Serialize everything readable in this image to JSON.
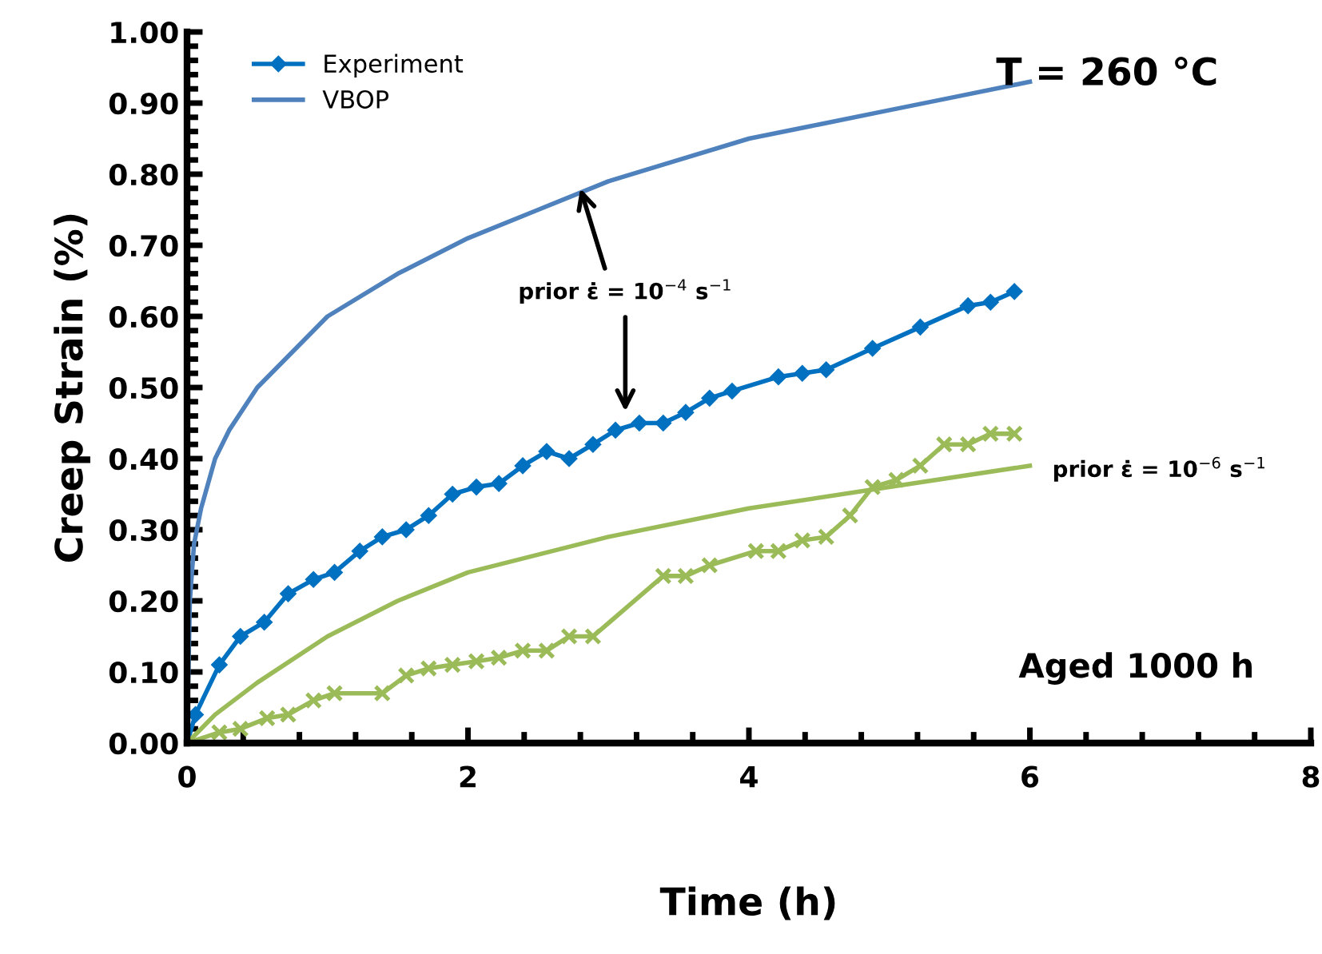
{
  "chart_data": {
    "type": "line",
    "xlabel": "Time (h)",
    "ylabel": "Creep Strain (%)",
    "xlim": [
      0,
      8
    ],
    "xticks": [
      0,
      2,
      4,
      6,
      8
    ],
    "ylim": [
      0,
      1.0
    ],
    "yticks": [
      {
        "value": 0,
        "label": "0.00"
      },
      {
        "value": 0.1,
        "label": "0.10"
      },
      {
        "value": 0.2,
        "label": "0.20"
      },
      {
        "value": 0.3,
        "label": "0.30"
      },
      {
        "value": 0.4,
        "label": "0.40"
      },
      {
        "value": 0.5,
        "label": "0.50"
      },
      {
        "value": 0.6,
        "label": "0.60"
      },
      {
        "value": 0.7,
        "label": "0.70"
      },
      {
        "value": 0.8,
        "label": "0.80"
      },
      {
        "value": 0.9,
        "label": "0.90"
      },
      {
        "value": 1.0,
        "label": "1.00"
      }
    ],
    "grid": false,
    "legend": "top left",
    "annotations": [
      "T = 260 °C",
      "Aged 1000 h",
      {
        "text": "prior ε̇ = 10$^{−4}$ s$^{−1}$",
        "x": 2.8,
        "y": 0.78
      },
      "prior ε̇ = 10$^{−6}$ s$^{−1}$"
    ],
    "series": [
      {
        "name": "Experiment",
        "color": "#0070c0",
        "marker": "diamond",
        "x": [
          0,
          0.06,
          0.23,
          0.38,
          0.55,
          0.72,
          0.9,
          1.05,
          1.23,
          1.39,
          1.56,
          1.72,
          1.89,
          2.06,
          2.22,
          2.39,
          2.56,
          2.72,
          2.89,
          3.05,
          3.22,
          3.39,
          3.55,
          3.72,
          3.88,
          4.21,
          4.38,
          4.55,
          4.88,
          5.22,
          5.56,
          5.72,
          5.89
        ],
        "values": [
          0,
          0.04,
          0.11,
          0.15,
          0.17,
          0.21,
          0.23,
          0.24,
          0.27,
          0.29,
          0.3,
          0.32,
          0.35,
          0.36,
          0.365,
          0.39,
          0.41,
          0.4,
          0.42,
          0.44,
          0.45,
          0.45,
          0.465,
          0.485,
          0.495,
          0.515,
          0.52,
          0.525,
          0.555,
          0.585,
          0.615,
          0.62,
          0.635
        ]
      },
      {
        "name": "VBOP",
        "color": "#4f81bd",
        "marker": "none",
        "x": [
          0,
          0.02,
          0.05,
          0.1,
          0.2,
          0.3,
          0.5,
          0.75,
          1,
          1.5,
          2,
          2.5,
          3,
          3.5,
          4,
          4.5,
          5,
          5.5,
          6
        ],
        "values": [
          0,
          0.2,
          0.28,
          0.33,
          0.4,
          0.44,
          0.5,
          0.55,
          0.6,
          0.66,
          0.71,
          0.75,
          0.79,
          0.82,
          0.85,
          0.87,
          0.89,
          0.91,
          0.93
        ]
      },
      {
        "color": "#9bbb59",
        "marker": "cross",
        "x": [
          0,
          0.23,
          0.38,
          0.57,
          0.72,
          0.9,
          1.05,
          1.39,
          1.56,
          1.72,
          1.89,
          2.06,
          2.22,
          2.39,
          2.56,
          2.72,
          2.89,
          3.39,
          3.55,
          3.72,
          4.05,
          4.21,
          4.38,
          4.55,
          4.72,
          4.88,
          5.05,
          5.22,
          5.39,
          5.56,
          5.72,
          5.89
        ],
        "values": [
          0,
          0.015,
          0.02,
          0.035,
          0.04,
          0.06,
          0.07,
          0.07,
          0.095,
          0.105,
          0.11,
          0.115,
          0.12,
          0.13,
          0.13,
          0.15,
          0.15,
          0.235,
          0.235,
          0.25,
          0.27,
          0.27,
          0.285,
          0.29,
          0.32,
          0.36,
          0.37,
          0.39,
          0.42,
          0.42,
          0.435,
          0.435
        ]
      },
      {
        "color": "#9bbb59",
        "marker": "none",
        "x": [
          0,
          0.1,
          0.2,
          0.5,
          1,
          1.5,
          2,
          3,
          4,
          5,
          6
        ],
        "values": [
          0,
          0.02,
          0.04,
          0.085,
          0.15,
          0.2,
          0.24,
          0.29,
          0.33,
          0.36,
          0.39
        ]
      }
    ]
  }
}
